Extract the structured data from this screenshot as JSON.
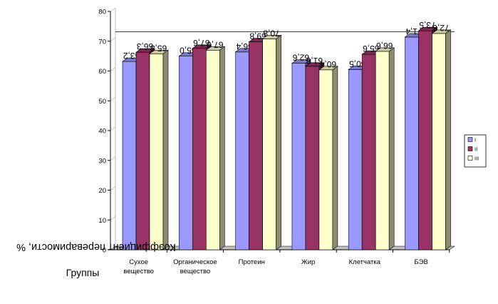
{
  "chart_data": {
    "type": "bar",
    "ylabel": "Коэффициент переваримости, %",
    "xlabel": "Группы",
    "ylim": [
      0,
      80
    ],
    "yticks": [
      0,
      10,
      20,
      30,
      40,
      50,
      60,
      70,
      80
    ],
    "categories": [
      [
        "Сухое",
        "вещество"
      ],
      [
        "Органическое",
        "вещество"
      ],
      [
        "Протеин"
      ],
      [
        "Жир"
      ],
      [
        "Клетчатка"
      ],
      [
        "БЭВ"
      ]
    ],
    "series": [
      {
        "name": "I",
        "values": [
          63.2,
          65.0,
          66.4,
          62.6,
          60.5,
          71.4
        ],
        "color": "#9999ff"
      },
      {
        "name": "II",
        "values": [
          66.3,
          67.6,
          69.8,
          61.6,
          65.6,
          73.5
        ],
        "color": "#993366"
      },
      {
        "name": "III",
        "values": [
          65.8,
          67.0,
          70.8,
          60.4,
          66.6,
          72.6
        ],
        "color": "#ffffcc"
      }
    ],
    "data_labels": [
      [
        "63,2",
        "66,3",
        "65,8"
      ],
      [
        "65,0",
        "67,6",
        "67,0"
      ],
      [
        "66,4",
        "69,8",
        "70,8"
      ],
      [
        "62,6",
        "61,6",
        "60,4"
      ],
      [
        "60,5",
        "65,6",
        "66,6"
      ],
      [
        "71,4",
        "73,5",
        "72,6"
      ]
    ],
    "legend_position": "right",
    "grid": false
  }
}
